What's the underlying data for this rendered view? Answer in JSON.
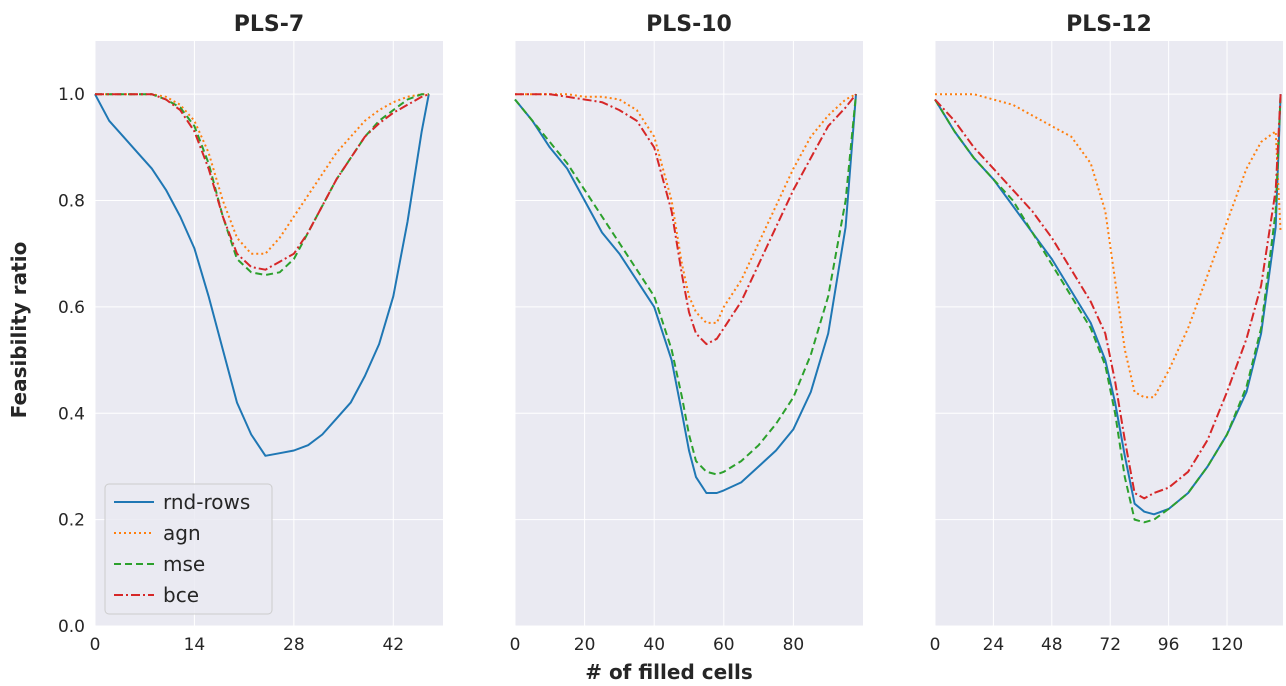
{
  "figure": {
    "xlabel": "# of filled cells",
    "ylabel": "Feasibility ratio",
    "ylim": [
      0,
      1.1
    ],
    "yticks": [
      0,
      0.2,
      0.4,
      0.6,
      0.8,
      1.0
    ],
    "ytick_labels": [
      "0.0",
      "0.2",
      "0.4",
      "0.6",
      "0.8",
      "1.0"
    ],
    "background": "#eaeaf2",
    "grid": true,
    "legend": {
      "placement": "lower-left",
      "entries": [
        {
          "label": "rnd-rows",
          "color": "#1f77b4",
          "style": "solid"
        },
        {
          "label": "agn",
          "color": "#ff7f0e",
          "style": "dotted"
        },
        {
          "label": "mse",
          "color": "#2ca02c",
          "style": "dashed"
        },
        {
          "label": "bce",
          "color": "#d62728",
          "style": "dashdot"
        }
      ]
    }
  },
  "chart_data": [
    {
      "type": "line",
      "title": "PLS-7",
      "xlim": [
        0,
        49
      ],
      "xticks": [
        0,
        14,
        28,
        42
      ],
      "x": [
        0,
        2,
        4,
        6,
        8,
        10,
        12,
        14,
        16,
        18,
        20,
        22,
        24,
        26,
        28,
        30,
        32,
        34,
        36,
        38,
        40,
        42,
        44,
        46,
        47
      ],
      "series": [
        {
          "name": "rnd-rows",
          "values": [
            1.0,
            0.95,
            0.92,
            0.89,
            0.86,
            0.82,
            0.77,
            0.71,
            0.62,
            0.52,
            0.42,
            0.36,
            0.32,
            0.325,
            0.33,
            0.34,
            0.36,
            0.39,
            0.42,
            0.47,
            0.53,
            0.62,
            0.76,
            0.93,
            1.0
          ]
        },
        {
          "name": "agn",
          "values": [
            1.0,
            1.0,
            1.0,
            1.0,
            1.0,
            0.995,
            0.98,
            0.95,
            0.89,
            0.8,
            0.73,
            0.7,
            0.7,
            0.73,
            0.77,
            0.81,
            0.85,
            0.89,
            0.92,
            0.95,
            0.97,
            0.985,
            0.995,
            1.0,
            1.0
          ]
        },
        {
          "name": "mse",
          "values": [
            1.0,
            1.0,
            1.0,
            1.0,
            1.0,
            0.99,
            0.975,
            0.94,
            0.87,
            0.77,
            0.69,
            0.665,
            0.66,
            0.665,
            0.69,
            0.74,
            0.79,
            0.84,
            0.88,
            0.92,
            0.95,
            0.97,
            0.99,
            1.0,
            1.0
          ]
        },
        {
          "name": "bce",
          "values": [
            1.0,
            1.0,
            1.0,
            1.0,
            1.0,
            0.99,
            0.97,
            0.93,
            0.86,
            0.77,
            0.7,
            0.675,
            0.67,
            0.685,
            0.7,
            0.74,
            0.79,
            0.84,
            0.88,
            0.92,
            0.945,
            0.965,
            0.98,
            0.995,
            1.0
          ]
        }
      ]
    },
    {
      "type": "line",
      "title": "PLS-10",
      "xlim": [
        0,
        100
      ],
      "xticks": [
        0,
        20,
        40,
        60,
        80
      ],
      "x": [
        0,
        5,
        10,
        15,
        20,
        25,
        30,
        35,
        40,
        45,
        48,
        50,
        52,
        55,
        58,
        60,
        65,
        70,
        75,
        80,
        85,
        90,
        95,
        98
      ],
      "series": [
        {
          "name": "rnd-rows",
          "values": [
            0.99,
            0.95,
            0.9,
            0.86,
            0.8,
            0.74,
            0.7,
            0.65,
            0.6,
            0.5,
            0.4,
            0.33,
            0.28,
            0.25,
            0.25,
            0.255,
            0.27,
            0.3,
            0.33,
            0.37,
            0.44,
            0.55,
            0.75,
            1.0
          ]
        },
        {
          "name": "agn",
          "values": [
            1.0,
            1.0,
            1.0,
            1.0,
            0.995,
            0.995,
            0.99,
            0.97,
            0.92,
            0.8,
            0.68,
            0.62,
            0.59,
            0.57,
            0.57,
            0.6,
            0.65,
            0.72,
            0.79,
            0.86,
            0.92,
            0.96,
            0.99,
            1.0
          ]
        },
        {
          "name": "mse",
          "values": [
            0.99,
            0.95,
            0.91,
            0.87,
            0.82,
            0.77,
            0.72,
            0.67,
            0.62,
            0.52,
            0.43,
            0.36,
            0.31,
            0.29,
            0.285,
            0.29,
            0.31,
            0.34,
            0.38,
            0.43,
            0.51,
            0.62,
            0.8,
            1.0
          ]
        },
        {
          "name": "bce",
          "values": [
            1.0,
            1.0,
            1.0,
            0.995,
            0.99,
            0.985,
            0.97,
            0.95,
            0.9,
            0.78,
            0.66,
            0.59,
            0.55,
            0.53,
            0.54,
            0.56,
            0.61,
            0.68,
            0.75,
            0.82,
            0.88,
            0.94,
            0.975,
            1.0
          ]
        }
      ]
    },
    {
      "type": "line",
      "title": "PLS-12",
      "xlim": [
        0,
        143
      ],
      "xticks": [
        0,
        24,
        48,
        72,
        96,
        120
      ],
      "x": [
        0,
        8,
        16,
        24,
        32,
        40,
        48,
        56,
        64,
        70,
        74,
        78,
        82,
        86,
        90,
        96,
        104,
        112,
        120,
        128,
        134,
        140,
        142
      ],
      "series": [
        {
          "name": "rnd-rows",
          "values": [
            0.99,
            0.93,
            0.88,
            0.84,
            0.79,
            0.74,
            0.69,
            0.63,
            0.57,
            0.5,
            0.42,
            0.32,
            0.23,
            0.215,
            0.21,
            0.22,
            0.25,
            0.3,
            0.36,
            0.44,
            0.55,
            0.75,
            1.0
          ]
        },
        {
          "name": "agn",
          "values": [
            1.0,
            1.0,
            1.0,
            0.99,
            0.98,
            0.96,
            0.94,
            0.92,
            0.87,
            0.78,
            0.65,
            0.52,
            0.44,
            0.43,
            0.43,
            0.48,
            0.56,
            0.66,
            0.76,
            0.86,
            0.91,
            0.93,
            0.74
          ]
        },
        {
          "name": "mse",
          "values": [
            0.99,
            0.93,
            0.88,
            0.84,
            0.8,
            0.74,
            0.68,
            0.62,
            0.56,
            0.49,
            0.4,
            0.28,
            0.2,
            0.195,
            0.2,
            0.22,
            0.25,
            0.3,
            0.36,
            0.45,
            0.56,
            0.78,
            1.0
          ]
        },
        {
          "name": "bce",
          "values": [
            0.99,
            0.95,
            0.9,
            0.86,
            0.82,
            0.78,
            0.73,
            0.67,
            0.61,
            0.55,
            0.46,
            0.35,
            0.25,
            0.24,
            0.25,
            0.26,
            0.29,
            0.35,
            0.44,
            0.54,
            0.64,
            0.82,
            1.0
          ]
        }
      ]
    }
  ]
}
